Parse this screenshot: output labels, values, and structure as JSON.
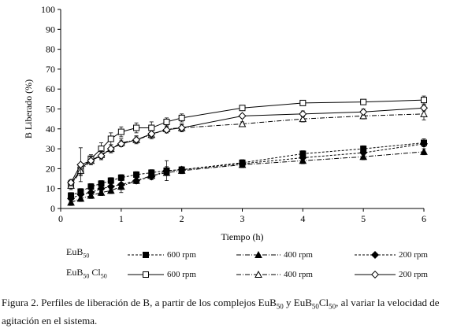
{
  "chart_data": {
    "type": "line",
    "title": "",
    "xlabel": "Tiempo (h)",
    "ylabel": "B Liberado (%)",
    "xlim": [
      0,
      6
    ],
    "ylim": [
      0,
      100
    ],
    "xticks": [
      "0",
      "1",
      "2",
      "3",
      "4",
      "5",
      "6"
    ],
    "yticks": [
      "0",
      "10",
      "20",
      "30",
      "40",
      "50",
      "60",
      "70",
      "80",
      "90",
      "100"
    ],
    "grid": false,
    "legend_position": "bottom",
    "legend": {
      "group1_base": "EuB",
      "group1_sub": "50",
      "group2_base": "EuB",
      "group2_sub": "50",
      "group2_suffix": " Cl",
      "group2_sub2": "50"
    },
    "series": [
      {
        "name": "600 rpm",
        "group": 1,
        "marker": "square",
        "filled": true,
        "dash": "3,2",
        "x": [
          0.17,
          0.33,
          0.5,
          0.67,
          0.83,
          1.0,
          1.25,
          1.5,
          1.75,
          2.0,
          3.0,
          4.0,
          5.0,
          6.0
        ],
        "y": [
          6.5,
          8.5,
          11,
          12.5,
          14,
          15.5,
          17,
          18,
          19,
          19.5,
          23,
          27.5,
          30,
          33
        ],
        "err": [
          1.5,
          1.5,
          1.5,
          1.5,
          1.5,
          1.5,
          1.5,
          1.5,
          2,
          1.5,
          1.5,
          1.5,
          1.5,
          2
        ]
      },
      {
        "name": "400 rpm",
        "group": 1,
        "marker": "triangle",
        "filled": true,
        "dash": "6,2,1,2",
        "x": [
          0.17,
          0.33,
          0.5,
          0.67,
          0.83,
          1.0,
          1.25,
          1.5,
          1.75,
          2.0,
          3.0,
          4.0,
          5.0,
          6.0
        ],
        "y": [
          3,
          5,
          6.5,
          8,
          9,
          11,
          14,
          16.5,
          18,
          19,
          22,
          24,
          26,
          28.5
        ],
        "err": [
          1.5,
          1.5,
          1.5,
          1.5,
          1.5,
          1.5,
          1.5,
          1.5,
          1.5,
          1.5,
          1.5,
          1.5,
          1.5,
          1.5
        ]
      },
      {
        "name": "200 rpm",
        "group": 1,
        "marker": "diamond",
        "filled": true,
        "dash": "3,2",
        "x": [
          0.17,
          0.33,
          0.5,
          0.67,
          0.83,
          1.0,
          1.25,
          1.5,
          1.75,
          2.0,
          3.0,
          4.0,
          5.0,
          6.0
        ],
        "y": [
          5,
          7,
          8,
          10,
          11,
          12,
          14,
          16,
          19,
          19.5,
          22.5,
          25.5,
          28,
          32.5
        ],
        "err": [
          1.5,
          1.5,
          1.5,
          1.5,
          1.5,
          4,
          1.5,
          1.5,
          5,
          1.5,
          1.5,
          1.5,
          1.5,
          1.5
        ]
      },
      {
        "name": "600 rpm",
        "group": 2,
        "marker": "square",
        "filled": false,
        "dash": "",
        "x": [
          0.17,
          0.33,
          0.5,
          0.67,
          0.83,
          1.0,
          1.25,
          1.5,
          1.75,
          2.0,
          3.0,
          4.0,
          5.0,
          6.0
        ],
        "y": [
          12.5,
          19.5,
          25,
          30,
          35,
          38.5,
          40.5,
          40.5,
          43.5,
          45.5,
          50.5,
          53,
          53.5,
          54.5
        ],
        "err": [
          2,
          3,
          2,
          3,
          3,
          2.5,
          2.5,
          3,
          2,
          2,
          1,
          1,
          1,
          2
        ]
      },
      {
        "name": "400 rpm",
        "group": 2,
        "marker": "triangle",
        "filled": false,
        "dash": "6,2,1,2",
        "x": [
          0.17,
          0.33,
          0.5,
          0.67,
          0.83,
          1.0,
          1.25,
          1.5,
          1.75,
          2.0,
          3.0,
          4.0,
          5.0,
          6.0
        ],
        "y": [
          11.5,
          19,
          24,
          27,
          30,
          33,
          34.5,
          37,
          40,
          40.5,
          42.5,
          45,
          46.5,
          47.5
        ],
        "err": [
          2,
          2,
          2,
          2,
          2,
          2,
          2,
          2,
          2,
          2,
          1,
          1.5,
          1.5,
          3
        ]
      },
      {
        "name": "200 rpm",
        "group": 2,
        "marker": "diamond",
        "filled": false,
        "dash": "",
        "x": [
          0.17,
          0.33,
          0.5,
          0.67,
          0.83,
          1.0,
          1.25,
          1.5,
          1.75,
          2.0,
          3.0,
          4.0,
          5.0,
          6.0
        ],
        "y": [
          13,
          22,
          24,
          26.5,
          30,
          32.5,
          34.5,
          37.5,
          39.5,
          40.5,
          46.5,
          47.5,
          48.5,
          50.5
        ],
        "err": [
          1.5,
          8.5,
          2,
          2,
          2,
          1.5,
          1.5,
          1.5,
          1.5,
          1.5,
          1,
          1.5,
          1.5,
          1.5
        ]
      }
    ]
  },
  "caption": {
    "prefix": "Figura 2. Perfiles de liberación de B, a partir de los complejos EuB",
    "sub1": "50",
    "mid1": " y EuB",
    "sub2": "50",
    "mid2": "Cl",
    "sub3": "50",
    "suffix": ", al variar la velocidad de agitación en el sistema."
  }
}
